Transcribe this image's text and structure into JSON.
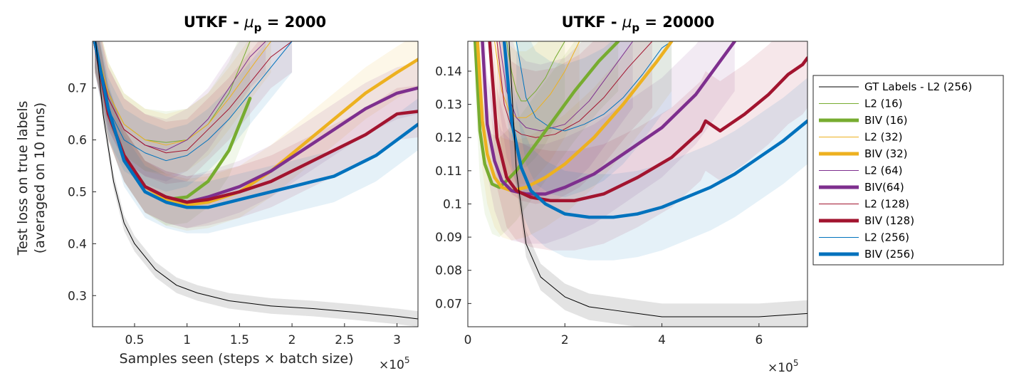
{
  "ylabel_line1": "Test loss on true labels",
  "ylabel_line2": "(averaged on 10 runs)",
  "chart_data": [
    {
      "type": "line",
      "title_main": "UTKF - ",
      "title_mu": "μ",
      "title_sub": "p",
      "title_value": " = 2000",
      "xlabel": "Samples seen (steps × batch size)",
      "x_multiplier": "×10",
      "x_multiplier_exp": "5",
      "xlim": [
        0.1,
        3.2
      ],
      "ylim": [
        0.24,
        0.79
      ],
      "xticks": [
        0.5,
        1,
        1.5,
        2,
        2.5,
        3
      ],
      "xtick_labels": [
        "0.5",
        "1",
        "1.5",
        "2",
        "2.5",
        "3"
      ],
      "yticks": [
        0.3,
        0.4,
        0.5,
        0.6,
        0.7
      ],
      "ytick_labels": [
        "0.3",
        "0.4",
        "0.5",
        "0.6",
        "0.7"
      ],
      "series": [
        {
          "key": "gt",
          "x": [
            0.13,
            0.2,
            0.3,
            0.4,
            0.5,
            0.7,
            0.9,
            1.1,
            1.4,
            1.8,
            2.2,
            2.6,
            3.0,
            3.2
          ],
          "y": [
            0.79,
            0.65,
            0.52,
            0.44,
            0.4,
            0.35,
            0.32,
            0.305,
            0.29,
            0.28,
            0.275,
            0.268,
            0.26,
            0.255
          ],
          "band": 0.015
        },
        {
          "key": "l2_16",
          "x": [
            0.12,
            0.25,
            0.4,
            0.6,
            0.8,
            1.0,
            1.2,
            1.4,
            1.6
          ],
          "y": [
            0.79,
            0.69,
            0.63,
            0.6,
            0.595,
            0.6,
            0.63,
            0.69,
            0.79
          ],
          "band": 0.06
        },
        {
          "key": "biv_16",
          "x": [
            0.12,
            0.25,
            0.4,
            0.6,
            0.8,
            1.0,
            1.2,
            1.4,
            1.6
          ],
          "y": [
            0.79,
            0.65,
            0.57,
            0.51,
            0.485,
            0.49,
            0.52,
            0.58,
            0.68
          ],
          "band": 0.05
        },
        {
          "key": "l2_32",
          "x": [
            0.12,
            0.25,
            0.4,
            0.6,
            0.8,
            1.0,
            1.2,
            1.4,
            1.65,
            1.8
          ],
          "y": [
            0.79,
            0.69,
            0.63,
            0.6,
            0.59,
            0.6,
            0.63,
            0.68,
            0.75,
            0.79
          ],
          "band": 0.06
        },
        {
          "key": "biv_32",
          "x": [
            0.12,
            0.25,
            0.4,
            0.6,
            0.8,
            1.0,
            1.2,
            1.5,
            1.8,
            2.1,
            2.4,
            2.7,
            3.0,
            3.2
          ],
          "y": [
            0.79,
            0.65,
            0.57,
            0.51,
            0.485,
            0.475,
            0.48,
            0.5,
            0.54,
            0.59,
            0.64,
            0.69,
            0.73,
            0.755
          ],
          "band": 0.05
        },
        {
          "key": "l2_64",
          "x": [
            0.12,
            0.25,
            0.4,
            0.6,
            0.8,
            1.0,
            1.2,
            1.4,
            1.6,
            1.75
          ],
          "y": [
            0.79,
            0.68,
            0.62,
            0.59,
            0.58,
            0.6,
            0.64,
            0.7,
            0.76,
            0.79
          ],
          "band": 0.06
        },
        {
          "key": "biv_64",
          "x": [
            0.12,
            0.25,
            0.4,
            0.6,
            0.8,
            1.0,
            1.2,
            1.5,
            1.8,
            2.1,
            2.4,
            2.7,
            3.0,
            3.2
          ],
          "y": [
            0.79,
            0.65,
            0.57,
            0.51,
            0.49,
            0.48,
            0.49,
            0.51,
            0.54,
            0.58,
            0.62,
            0.66,
            0.69,
            0.7
          ],
          "band": 0.05
        },
        {
          "key": "l2_128",
          "x": [
            0.12,
            0.25,
            0.4,
            0.6,
            0.8,
            1.0,
            1.2,
            1.4,
            1.6,
            1.8,
            2.0
          ],
          "y": [
            0.79,
            0.68,
            0.62,
            0.59,
            0.575,
            0.58,
            0.62,
            0.66,
            0.71,
            0.76,
            0.79
          ],
          "band": 0.06
        },
        {
          "key": "biv_128",
          "x": [
            0.12,
            0.25,
            0.4,
            0.6,
            0.8,
            1.0,
            1.2,
            1.5,
            1.8,
            2.1,
            2.4,
            2.7,
            3.0,
            3.2
          ],
          "y": [
            0.79,
            0.65,
            0.57,
            0.51,
            0.49,
            0.48,
            0.485,
            0.5,
            0.52,
            0.55,
            0.58,
            0.61,
            0.65,
            0.655
          ],
          "band": 0.05
        },
        {
          "key": "l2_256",
          "x": [
            0.12,
            0.25,
            0.4,
            0.6,
            0.8,
            1.0,
            1.2,
            1.4,
            1.6,
            1.8,
            2.0
          ],
          "y": [
            0.79,
            0.66,
            0.6,
            0.575,
            0.56,
            0.57,
            0.6,
            0.64,
            0.69,
            0.74,
            0.79
          ],
          "band": 0.06
        },
        {
          "key": "biv_256",
          "x": [
            0.12,
            0.25,
            0.4,
            0.6,
            0.8,
            1.0,
            1.2,
            1.4,
            1.6,
            1.8,
            2.0,
            2.2,
            2.4,
            2.6,
            2.8,
            3.0,
            3.2
          ],
          "y": [
            0.79,
            0.66,
            0.56,
            0.5,
            0.48,
            0.47,
            0.47,
            0.48,
            0.49,
            0.5,
            0.51,
            0.52,
            0.53,
            0.55,
            0.57,
            0.6,
            0.63
          ],
          "band": 0.05
        }
      ]
    },
    {
      "type": "line",
      "title_main": "UTKF - ",
      "title_mu": "μ",
      "title_sub": "p",
      "title_value": " = 20000",
      "xlabel": "",
      "x_multiplier": "×10",
      "x_multiplier_exp": "5",
      "xlim": [
        0,
        7
      ],
      "ylim": [
        0.063,
        0.149
      ],
      "xticks": [
        0,
        2,
        4,
        6
      ],
      "xtick_labels": [
        "0",
        "2",
        "4",
        "6"
      ],
      "yticks": [
        0.07,
        0.08,
        0.09,
        0.1,
        0.11,
        0.12,
        0.13,
        0.14
      ],
      "ytick_labels": [
        "0.07",
        "0.08",
        "0.09",
        "0.1",
        "0.11",
        "0.12",
        "0.13",
        "0.14"
      ],
      "series": [
        {
          "key": "gt",
          "x": [
            0.85,
            1.0,
            1.2,
            1.5,
            2.0,
            2.5,
            3.0,
            3.5,
            4.0,
            5.0,
            6.0,
            7.0
          ],
          "y": [
            0.149,
            0.11,
            0.088,
            0.078,
            0.072,
            0.069,
            0.068,
            0.067,
            0.066,
            0.066,
            0.066,
            0.067
          ],
          "band": 0.004
        },
        {
          "key": "l2_16",
          "x": [
            0.8,
            0.9,
            1.0,
            1.1,
            1.2,
            1.4,
            1.6,
            1.8,
            2.0
          ],
          "y": [
            0.149,
            0.14,
            0.134,
            0.131,
            0.131,
            0.134,
            0.138,
            0.144,
            0.149
          ],
          "band": 0.02
        },
        {
          "key": "biv_16",
          "x": [
            0.15,
            0.25,
            0.35,
            0.5,
            0.65,
            0.8,
            1.0,
            1.3,
            1.7,
            2.2,
            2.7,
            3.1
          ],
          "y": [
            0.149,
            0.122,
            0.112,
            0.106,
            0.105,
            0.107,
            0.11,
            0.116,
            0.124,
            0.134,
            0.143,
            0.149
          ],
          "band": 0.015
        },
        {
          "key": "l2_32",
          "x": [
            0.55,
            0.7,
            0.85,
            1.0,
            1.2,
            1.4,
            1.7,
            2.0,
            2.3
          ],
          "y": [
            0.149,
            0.134,
            0.128,
            0.126,
            0.126,
            0.128,
            0.133,
            0.14,
            0.149
          ],
          "band": 0.02
        },
        {
          "key": "biv_32",
          "x": [
            0.2,
            0.3,
            0.4,
            0.55,
            0.7,
            0.9,
            1.2,
            1.6,
            2.0,
            2.6,
            3.2,
            3.9,
            4.2
          ],
          "y": [
            0.149,
            0.125,
            0.115,
            0.108,
            0.105,
            0.104,
            0.105,
            0.108,
            0.112,
            0.12,
            0.13,
            0.143,
            0.149
          ],
          "band": 0.015
        },
        {
          "key": "l2_64",
          "x": [
            0.65,
            0.8,
            1.0,
            1.2,
            1.5,
            2.0,
            2.5,
            3.0,
            3.4
          ],
          "y": [
            0.149,
            0.134,
            0.126,
            0.123,
            0.122,
            0.124,
            0.131,
            0.141,
            0.149
          ],
          "band": 0.02
        },
        {
          "key": "biv_64",
          "x": [
            0.3,
            0.4,
            0.55,
            0.7,
            0.9,
            1.2,
            1.6,
            2.0,
            2.6,
            3.3,
            4.0,
            4.7,
            5.2,
            5.5
          ],
          "y": [
            0.149,
            0.124,
            0.113,
            0.107,
            0.104,
            0.103,
            0.103,
            0.105,
            0.109,
            0.116,
            0.123,
            0.133,
            0.143,
            0.149
          ],
          "band": 0.015
        },
        {
          "key": "l2_128",
          "x": [
            0.6,
            0.75,
            0.9,
            1.1,
            1.4,
            1.8,
            2.3,
            2.8,
            3.3,
            3.8
          ],
          "y": [
            0.149,
            0.13,
            0.123,
            0.121,
            0.12,
            0.121,
            0.125,
            0.132,
            0.141,
            0.149
          ],
          "band": 0.02
        },
        {
          "key": "biv_128",
          "x": [
            0.45,
            0.6,
            0.8,
            1.0,
            1.3,
            1.7,
            2.2,
            2.8,
            3.5,
            4.2,
            4.8,
            4.9,
            5.2,
            5.7,
            6.2,
            6.6,
            6.9,
            7.0
          ],
          "y": [
            0.149,
            0.12,
            0.108,
            0.104,
            0.102,
            0.101,
            0.101,
            0.103,
            0.108,
            0.114,
            0.122,
            0.125,
            0.122,
            0.127,
            0.133,
            0.139,
            0.142,
            0.144
          ],
          "band": 0.015
        },
        {
          "key": "l2_256",
          "x": [
            1.0,
            1.2,
            1.4,
            1.7,
            2.0,
            2.4,
            2.8,
            3.2,
            3.6,
            4.0,
            4.2
          ],
          "y": [
            0.149,
            0.132,
            0.126,
            0.123,
            0.122,
            0.124,
            0.127,
            0.132,
            0.139,
            0.147,
            0.149
          ],
          "band": 0.02
        },
        {
          "key": "biv_256",
          "x": [
            0.75,
            0.9,
            1.1,
            1.3,
            1.6,
            2.0,
            2.5,
            3.0,
            3.5,
            4.0,
            4.5,
            5.0,
            5.5,
            6.0,
            6.5,
            7.0
          ],
          "y": [
            0.149,
            0.125,
            0.111,
            0.104,
            0.1,
            0.097,
            0.096,
            0.096,
            0.097,
            0.099,
            0.102,
            0.105,
            0.109,
            0.114,
            0.119,
            0.125
          ],
          "band": 0.013
        }
      ]
    }
  ],
  "legend": [
    {
      "key": "gt",
      "label": "GT Labels - L2 (256)",
      "color": "#000000",
      "width": 1
    },
    {
      "key": "l2_16",
      "label": "L2 (16)",
      "color": "#77AC30",
      "width": 1
    },
    {
      "key": "biv_16",
      "label": "BIV (16)",
      "color": "#77AC30",
      "width": 5
    },
    {
      "key": "l2_32",
      "label": "L2 (32)",
      "color": "#EDB120",
      "width": 1
    },
    {
      "key": "biv_32",
      "label": "BIV (32)",
      "color": "#EDB120",
      "width": 5
    },
    {
      "key": "l2_64",
      "label": "L2 (64)",
      "color": "#7E2F8E",
      "width": 1
    },
    {
      "key": "biv_64",
      "label": "BIV(64)",
      "color": "#7E2F8E",
      "width": 5
    },
    {
      "key": "l2_128",
      "label": "L2 (128)",
      "color": "#A2142F",
      "width": 1
    },
    {
      "key": "biv_128",
      "label": "BIV (128)",
      "color": "#A2142F",
      "width": 5
    },
    {
      "key": "l2_256",
      "label": "L2 (256)",
      "color": "#0072BD",
      "width": 1
    },
    {
      "key": "biv_256",
      "label": "BIV (256)",
      "color": "#0072BD",
      "width": 5
    }
  ]
}
